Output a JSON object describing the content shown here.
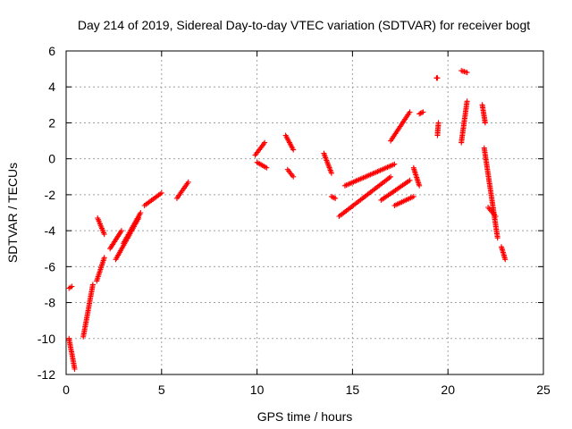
{
  "chart_data": {
    "type": "scatter",
    "title": "Day 214 of 2019, Sidereal Day-to-day VTEC variation (SDTVAR) for receiver bogt",
    "xlabel": "GPS time / hours",
    "ylabel": "SDTVAR / TECUs",
    "xlim": [
      0,
      25
    ],
    "ylim": [
      -12,
      6
    ],
    "xticks": [
      0,
      5,
      10,
      15,
      20,
      25
    ],
    "yticks": [
      -12,
      -10,
      -8,
      -6,
      -4,
      -2,
      0,
      2,
      4,
      6
    ],
    "grid": true,
    "marker": "plus",
    "color": "#ff0000",
    "series": [
      {
        "name": "SDTVAR",
        "segments": [
          {
            "x": [
              0.15,
              0.3
            ],
            "y": [
              -7.2,
              -7.1
            ]
          },
          {
            "x": [
              0.15,
              0.45
            ],
            "y": [
              -10.0,
              -11.7
            ]
          },
          {
            "x": [
              0.9,
              1.4
            ],
            "y": [
              -9.9,
              -7.0
            ]
          },
          {
            "x": [
              1.6,
              2.0
            ],
            "y": [
              -6.8,
              -5.5
            ]
          },
          {
            "x": [
              1.65,
              2.0
            ],
            "y": [
              -3.3,
              -4.2
            ]
          },
          {
            "x": [
              2.3,
              2.9
            ],
            "y": [
              -5.0,
              -4.0
            ]
          },
          {
            "x": [
              2.6,
              3.8
            ],
            "y": [
              -5.6,
              -3.3
            ]
          },
          {
            "x": [
              3.0,
              3.9
            ],
            "y": [
              -4.7,
              -3.0
            ]
          },
          {
            "x": [
              4.1,
              5.0
            ],
            "y": [
              -2.6,
              -1.9
            ]
          },
          {
            "x": [
              5.8,
              6.4
            ],
            "y": [
              -2.2,
              -1.3
            ]
          },
          {
            "x": [
              9.9,
              10.4
            ],
            "y": [
              0.2,
              0.9
            ]
          },
          {
            "x": [
              10.0,
              10.5
            ],
            "y": [
              -0.2,
              -0.5
            ]
          },
          {
            "x": [
              11.5,
              11.9
            ],
            "y": [
              1.3,
              0.5
            ]
          },
          {
            "x": [
              11.6,
              11.9
            ],
            "y": [
              -0.6,
              -1.0
            ]
          },
          {
            "x": [
              13.5,
              13.9
            ],
            "y": [
              0.3,
              -0.8
            ]
          },
          {
            "x": [
              13.9,
              14.1
            ],
            "y": [
              -2.1,
              -2.2
            ]
          },
          {
            "x": [
              14.3,
              17.0
            ],
            "y": [
              -3.2,
              -1.0
            ]
          },
          {
            "x": [
              14.6,
              17.2
            ],
            "y": [
              -1.5,
              -0.3
            ]
          },
          {
            "x": [
              16.5,
              18.0
            ],
            "y": [
              -2.3,
              -1.2
            ]
          },
          {
            "x": [
              17.0,
              18.0
            ],
            "y": [
              1.0,
              2.6
            ]
          },
          {
            "x": [
              17.2,
              18.2
            ],
            "y": [
              -2.6,
              -2.1
            ]
          },
          {
            "x": [
              18.2,
              18.5
            ],
            "y": [
              -0.5,
              -1.5
            ]
          },
          {
            "x": [
              18.5,
              18.7
            ],
            "y": [
              2.5,
              2.6
            ]
          },
          {
            "x": [
              19.4,
              19.45
            ],
            "y": [
              4.5,
              4.5
            ]
          },
          {
            "x": [
              19.45,
              19.5
            ],
            "y": [
              1.3,
              2.0
            ]
          },
          {
            "x": [
              20.7,
              21.0
            ],
            "y": [
              4.9,
              4.8
            ]
          },
          {
            "x": [
              20.7,
              21.0
            ],
            "y": [
              0.9,
              3.2
            ]
          },
          {
            "x": [
              21.8,
              21.95
            ],
            "y": [
              3.0,
              2.0
            ]
          },
          {
            "x": [
              21.9,
              22.6
            ],
            "y": [
              0.6,
              -4.4
            ]
          },
          {
            "x": [
              22.1,
              22.5
            ],
            "y": [
              -2.7,
              -3.2
            ]
          },
          {
            "x": [
              22.8,
              23.0
            ],
            "y": [
              -4.9,
              -5.6
            ]
          }
        ]
      }
    ]
  }
}
